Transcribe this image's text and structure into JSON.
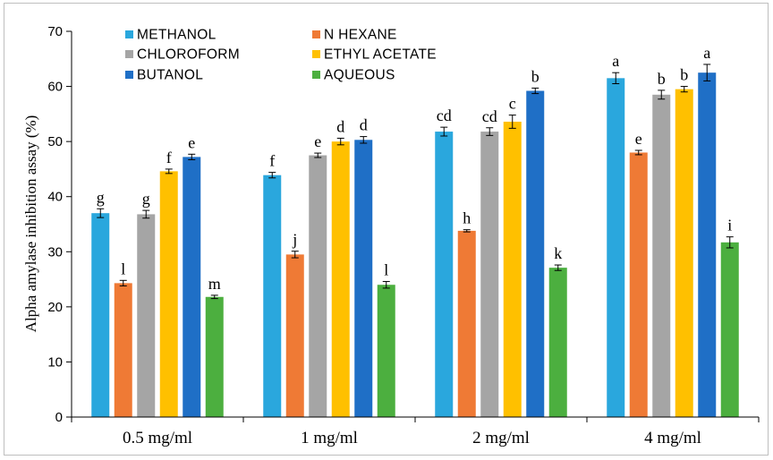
{
  "chart_data": {
    "type": "bar",
    "title": "",
    "xlabel": "",
    "ylabel": "Alpha amylase inhibition assay (%)",
    "ylim": [
      0,
      70
    ],
    "yticks": [
      "0",
      "10",
      "20",
      "30",
      "40",
      "50",
      "60",
      "70"
    ],
    "grid": false,
    "legend_position": "top",
    "categories": [
      "0.5 mg/ml",
      "1 mg/ml",
      "2 mg/ml",
      "4 mg/ml"
    ],
    "series": [
      {
        "name": "METHANOL",
        "color": "#2aa7dd",
        "values": [
          37.0,
          43.9,
          51.8,
          61.5
        ],
        "errors": [
          0.8,
          0.5,
          0.8,
          1.0
        ],
        "labels": [
          "g",
          "f",
          "cd",
          "a"
        ]
      },
      {
        "name": "N HEXANE",
        "color": "#ef7a35",
        "values": [
          24.3,
          29.5,
          33.8,
          48.0
        ],
        "errors": [
          0.5,
          0.6,
          0.2,
          0.4
        ],
        "labels": [
          "l",
          "j",
          "h",
          "e"
        ]
      },
      {
        "name": "CHLOROFORM",
        "color": "#a5a5a5",
        "values": [
          36.8,
          47.5,
          51.8,
          58.5
        ],
        "errors": [
          0.7,
          0.4,
          0.7,
          0.8
        ],
        "labels": [
          "g",
          "e",
          "cd",
          "b"
        ]
      },
      {
        "name": "ETHYL ACETATE",
        "color": "#ffc000",
        "values": [
          44.6,
          50.0,
          53.6,
          59.5
        ],
        "errors": [
          0.4,
          0.6,
          1.2,
          0.5
        ],
        "labels": [
          "f",
          "d",
          "c",
          "b"
        ]
      },
      {
        "name": "BUTANOL",
        "color": "#1f6fc6",
        "values": [
          47.2,
          50.3,
          59.2,
          62.5
        ],
        "errors": [
          0.5,
          0.6,
          0.5,
          1.5
        ],
        "labels": [
          "e",
          "d",
          "b",
          "a"
        ]
      },
      {
        "name": "AQUEOUS",
        "color": "#4caf3f",
        "values": [
          21.8,
          24.0,
          27.1,
          31.7
        ],
        "errors": [
          0.3,
          0.6,
          0.5,
          1.0
        ],
        "labels": [
          "m",
          "l",
          "k",
          "i"
        ]
      }
    ]
  }
}
